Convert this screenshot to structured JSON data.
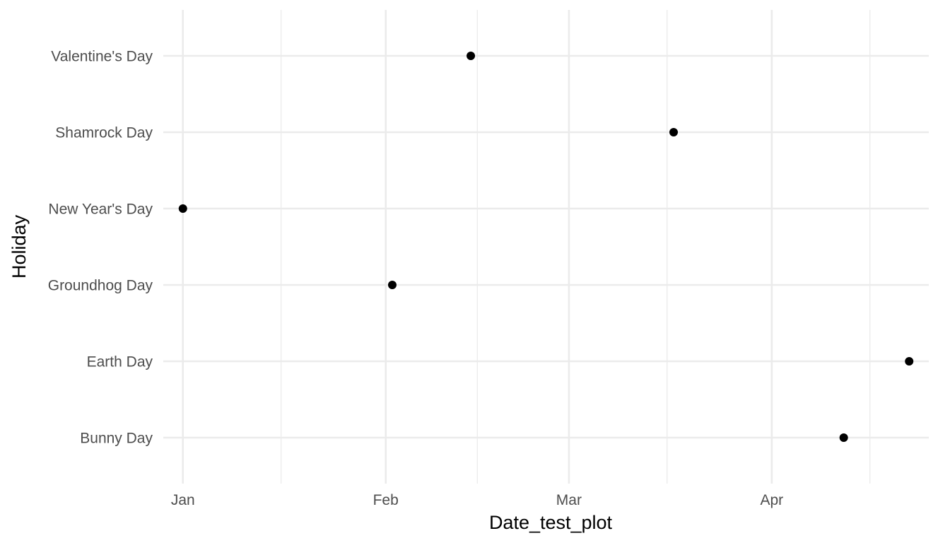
{
  "chart_data": {
    "type": "scatter",
    "title": "",
    "xlabel": "Date_test_plot",
    "ylabel": "Holiday",
    "x_scale": "date",
    "xlim": [
      "2020-12-29",
      "2021-04-25"
    ],
    "x_ticks": [
      {
        "label": "Jan",
        "value": "2021-01-01"
      },
      {
        "label": "Feb",
        "value": "2021-02-01"
      },
      {
        "label": "Mar",
        "value": "2021-03-01"
      },
      {
        "label": "Apr",
        "value": "2021-04-01"
      }
    ],
    "x_minor_ticks": [
      "2021-01-16",
      "2021-02-15",
      "2021-03-16",
      "2021-04-16"
    ],
    "categories": [
      "Bunny Day",
      "Earth Day",
      "Groundhog Day",
      "New Year's Day",
      "Shamrock Day",
      "Valentine's Day"
    ],
    "points": [
      {
        "holiday": "Valentine's Day",
        "date": "2021-02-14"
      },
      {
        "holiday": "Shamrock Day",
        "date": "2021-03-17"
      },
      {
        "holiday": "New Year's Day",
        "date": "2021-01-01"
      },
      {
        "holiday": "Groundhog Day",
        "date": "2021-02-02"
      },
      {
        "holiday": "Earth Day",
        "date": "2021-04-22"
      },
      {
        "holiday": "Bunny Day",
        "date": "2021-04-12"
      }
    ],
    "grid": true,
    "legend": "none",
    "colors": {
      "point": "#000000",
      "grid": "#ebebeb",
      "tick_text": "#4d4d4d",
      "axis_title": "#000000",
      "background": "#ffffff"
    }
  }
}
